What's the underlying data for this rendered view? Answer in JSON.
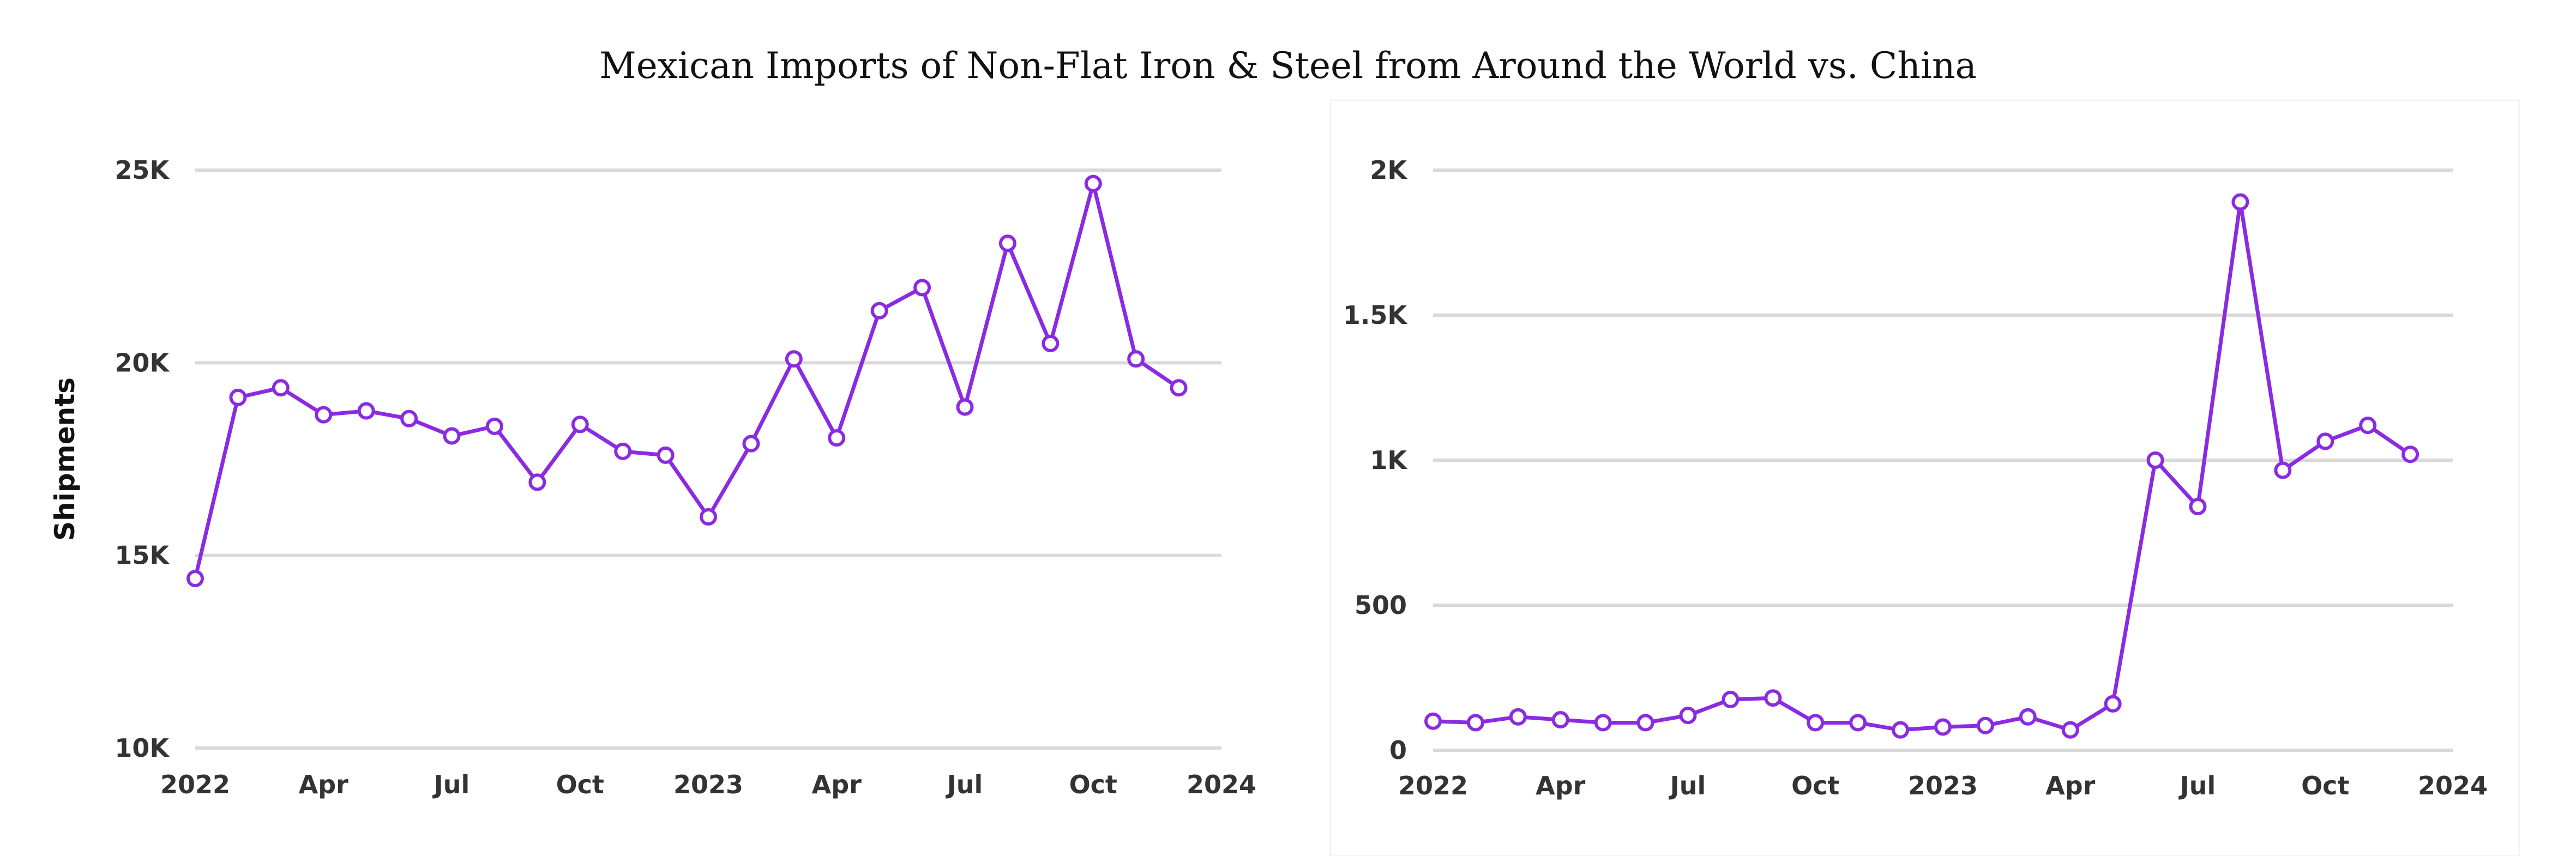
{
  "title": "Mexican Imports of Non-Flat Iron & Steel from Around the World vs. China",
  "colors": {
    "series": "#8a2be2",
    "grid": "#d9d9d9",
    "panel_border": "#f2f2f2"
  },
  "chart_data": [
    {
      "type": "line",
      "title": "",
      "xlabel": "",
      "ylabel": "Shipments",
      "ylim": [
        10000,
        25000
      ],
      "yticks": [
        10000,
        15000,
        20000,
        25000
      ],
      "ytick_labels": [
        "10K",
        "15K",
        "20K",
        "25K"
      ],
      "xlim": [
        "2022-01",
        "2024-01"
      ],
      "xticks": [
        "2022-01",
        "2022-04",
        "2022-07",
        "2022-10",
        "2023-01",
        "2023-04",
        "2023-07",
        "2023-10",
        "2024-01"
      ],
      "xtick_labels": [
        "2022",
        "Apr",
        "Jul",
        "Oct",
        "2023",
        "Apr",
        "Jul",
        "Oct",
        "2024"
      ],
      "grid": true,
      "legend": "none",
      "series": [
        {
          "x": [
            "2022-01",
            "2022-02",
            "2022-03",
            "2022-04",
            "2022-05",
            "2022-06",
            "2022-07",
            "2022-08",
            "2022-09",
            "2022-10",
            "2022-11",
            "2022-12",
            "2023-01",
            "2023-02",
            "2023-03",
            "2023-04",
            "2023-05",
            "2023-06",
            "2023-07",
            "2023-08",
            "2023-09",
            "2023-10",
            "2023-11",
            "2023-12"
          ],
          "values": [
            14400,
            19100,
            19350,
            18650,
            18750,
            18550,
            18100,
            18350,
            16900,
            18400,
            17700,
            17600,
            16000,
            17900,
            20100,
            18050,
            21350,
            21950,
            18850,
            23100,
            20500,
            24650,
            20100,
            19350
          ]
        }
      ]
    },
    {
      "type": "line",
      "title": "",
      "xlabel": "",
      "ylabel": "",
      "ylim": [
        0,
        2000
      ],
      "yticks": [
        0,
        500,
        1000,
        1500,
        2000
      ],
      "ytick_labels": [
        "0",
        "500",
        "1K",
        "1.5K",
        "2K"
      ],
      "xlim": [
        "2022-01",
        "2024-01"
      ],
      "xticks": [
        "2022-01",
        "2022-04",
        "2022-07",
        "2022-10",
        "2023-01",
        "2023-04",
        "2023-07",
        "2023-10",
        "2024-01"
      ],
      "xtick_labels": [
        "2022",
        "Apr",
        "Jul",
        "Oct",
        "2023",
        "Apr",
        "Jul",
        "Oct",
        "2024"
      ],
      "grid": true,
      "legend": "none",
      "series": [
        {
          "x": [
            "2022-01",
            "2022-02",
            "2022-03",
            "2022-04",
            "2022-05",
            "2022-06",
            "2022-07",
            "2022-08",
            "2022-09",
            "2022-10",
            "2022-11",
            "2022-12",
            "2023-01",
            "2023-02",
            "2023-03",
            "2023-04",
            "2023-05",
            "2023-06",
            "2023-07",
            "2023-08",
            "2023-09",
            "2023-10",
            "2023-11",
            "2023-12"
          ],
          "values": [
            100,
            95,
            115,
            105,
            95,
            95,
            120,
            175,
            180,
            95,
            95,
            70,
            80,
            85,
            115,
            70,
            160,
            1000,
            840,
            1890,
            965,
            1065,
            1120,
            1020
          ]
        }
      ]
    }
  ]
}
